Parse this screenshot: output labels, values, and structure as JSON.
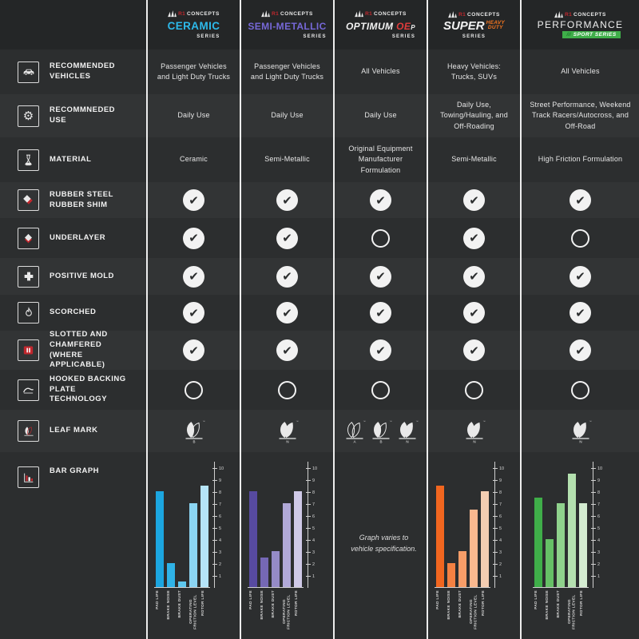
{
  "brand": {
    "r1": "R1",
    "concepts": "CONCEPTS"
  },
  "palette": {
    "background": "#2a2c2d",
    "row_dark": "#2c2e2f",
    "row_light": "#323435",
    "header_bg": "#242627",
    "separator": "#ededed",
    "accent_red": "#c1272d",
    "ceramic_accent": "#2db9ea",
    "semi_metallic_accent": "#7668d8",
    "optimum_accent": "#e03c3c",
    "super_accent": "#f4751f",
    "performance_accent": "#3fae49"
  },
  "rows": [
    {
      "label": "RECOMMENDED VEHICLES",
      "icon": "car-icon"
    },
    {
      "label": "RECOMMNEDED USE",
      "icon": "gear-icon"
    },
    {
      "label": "MATERIAL",
      "icon": "flask-icon"
    },
    {
      "label": "RUBBER STEEL RUBBER SHIM",
      "icon": "shim-layers-icon"
    },
    {
      "label": "UNDERLAYER",
      "icon": "underlayer-diamond-icon"
    },
    {
      "label": "POSITIVE MOLD",
      "icon": "plus-icon"
    },
    {
      "label": "SCORCHED",
      "icon": "flame-icon"
    },
    {
      "label": "SLOTTED AND CHAMFERED (WHERE APPLICABLE)",
      "icon": "slotted-pad-icon"
    },
    {
      "label": "HOOKED BACKING PLATE TECHNOLOGY",
      "icon": "hook-icon"
    },
    {
      "label": "LEAF MARK",
      "icon": "leaf-icon"
    },
    {
      "label": "BAR GRAPH",
      "icon": "bar-chart-icon"
    }
  ],
  "columns": [
    {
      "series": "CERAMIC",
      "series_sub": "SERIES",
      "vehicles": "Passenger Vehicles and Light Duty Trucks",
      "use": "Daily Use",
      "material": "Ceramic",
      "features": {
        "rubber_shim": true,
        "underlayer": true,
        "positive_mold": true,
        "scorched": true,
        "slotted": true,
        "hooked": false
      },
      "leaf_marks": [
        {
          "letter": "B",
          "style": "half"
        }
      ]
    },
    {
      "series": "SEMI-METALLIC",
      "series_sub": "SERIES",
      "vehicles": "Passenger Vehicles and Light Duty Trucks",
      "use": "Daily Use",
      "material": "Semi-Metallic",
      "features": {
        "rubber_shim": true,
        "underlayer": true,
        "positive_mold": true,
        "scorched": true,
        "slotted": true,
        "hooked": false
      },
      "leaf_marks": [
        {
          "letter": "N",
          "style": "filled"
        }
      ]
    },
    {
      "series": "OPTIMUM",
      "series_red": "OE",
      "series_p": "P",
      "series_sub": "SERIES",
      "vehicles": "All Vehicles",
      "use": "Daily Use",
      "material": "Original Equipment Manufacturer Formulation",
      "features": {
        "rubber_shim": true,
        "underlayer": false,
        "positive_mold": true,
        "scorched": true,
        "slotted": true,
        "hooked": false
      },
      "leaf_marks": [
        {
          "letter": "A",
          "style": "outline"
        },
        {
          "letter": "B",
          "style": "half"
        },
        {
          "letter": "N",
          "style": "filled"
        }
      ]
    },
    {
      "series": "SUPER",
      "series_red1": "HEAVY",
      "series_red2": "DUTY",
      "series_sub": "SERIES",
      "vehicles": "Heavy Vehicles: Trucks, SUVs",
      "use": "Daily Use, Towing/Hauling, and Off-Roading",
      "material": "Semi-Metallic",
      "features": {
        "rubber_shim": true,
        "underlayer": true,
        "positive_mold": true,
        "scorched": true,
        "slotted": true,
        "hooked": false
      },
      "leaf_marks": [
        {
          "letter": "N",
          "style": "filled"
        }
      ]
    },
    {
      "series": "PERFORMANCE",
      "badge_slashes": "///",
      "badge_text": "SPORT SERIES",
      "vehicles": "All Vehicles",
      "use": "Street Performance, Weekend Track Racers/Autocross, and Off-Road",
      "material": "High Friction Formulation",
      "features": {
        "rubber_shim": true,
        "underlayer": false,
        "positive_mold": true,
        "scorched": true,
        "slotted": true,
        "hooked": false
      },
      "leaf_marks": [
        {
          "letter": "N",
          "style": "filled"
        }
      ]
    }
  ],
  "chart_data": [
    {
      "type": "bar",
      "series": "Ceramic Series",
      "categories": [
        "PAD LIFE",
        "BRAKE NOISE",
        "BRAKE DUST",
        "OPERATING FRICTION LEVEL",
        "ROTOR LIFE"
      ],
      "values": [
        8,
        2,
        0.5,
        7,
        8.5
      ],
      "ylim": [
        0,
        10
      ],
      "axis_side": "right",
      "grid": false,
      "bar_colors": [
        "#1ca6e0",
        "#2fb3e7",
        "#5ec7ee",
        "#8bd5f3",
        "#b5e4f8"
      ]
    },
    {
      "type": "bar",
      "series": "Semi-Metallic Series",
      "categories": [
        "PAD LIFE",
        "BRAKE NOISE",
        "BRAKE DUST",
        "OPERATING FRICTION LEVEL",
        "ROTOR LIFE"
      ],
      "values": [
        8,
        2.5,
        3,
        7,
        8
      ],
      "ylim": [
        0,
        10
      ],
      "axis_side": "right",
      "grid": false,
      "bar_colors": [
        "#574aa0",
        "#7568b5",
        "#958bc7",
        "#b1a9d8",
        "#cfc9e7"
      ]
    },
    {
      "type": "none",
      "series": "Optimum OEP Series",
      "note": "Graph varies to vehicle specification."
    },
    {
      "type": "bar",
      "series": "Super Heavy Duty Series",
      "categories": [
        "PAD LIFE",
        "BRAKE NOISE",
        "BRAKE DUST",
        "OPERATING FRICTION LEVEL",
        "ROTOR LIFE"
      ],
      "values": [
        8.5,
        2,
        3,
        6.5,
        8
      ],
      "ylim": [
        0,
        10
      ],
      "axis_side": "right",
      "grid": false,
      "bar_colors": [
        "#f1661f",
        "#f48142",
        "#f79d68",
        "#fab88f",
        "#f3cdb2"
      ]
    },
    {
      "type": "bar",
      "series": "Performance Sport Series",
      "categories": [
        "PAD LIFE",
        "BRAKE NOISE",
        "BRAKE DUST",
        "OPERATING FRICTION LEVEL",
        "ROTOR LIFE"
      ],
      "values": [
        7.5,
        4,
        7,
        9.5,
        7
      ],
      "ylim": [
        0,
        10
      ],
      "axis_side": "right",
      "grid": false,
      "bar_colors": [
        "#3fae49",
        "#66c066",
        "#8fd28c",
        "#b4e0af",
        "#d4ecd1"
      ]
    }
  ]
}
